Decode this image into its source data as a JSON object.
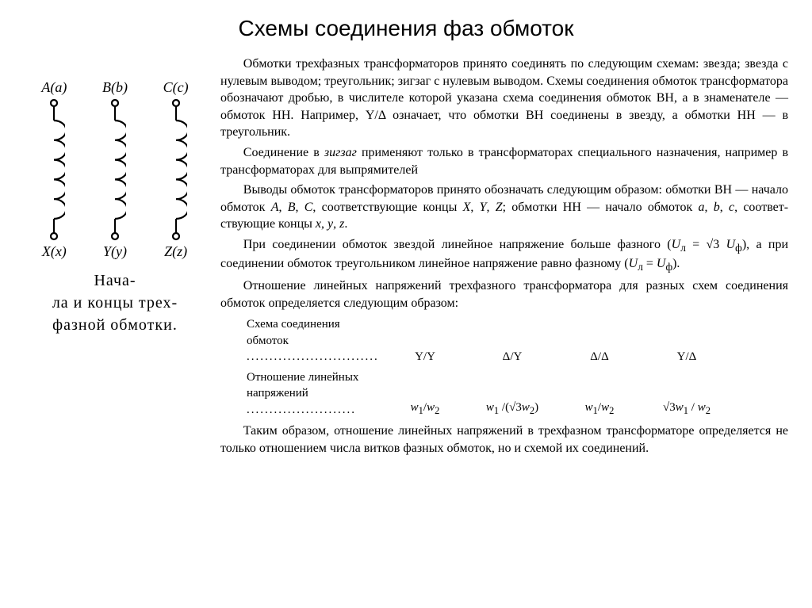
{
  "title": "Схемы соединения фаз обмоток",
  "figure": {
    "coils": [
      {
        "top": "A(a)",
        "bottom": "X(x)"
      },
      {
        "top": "B(b)",
        "bottom": "Y(y)"
      },
      {
        "top": "C(c)",
        "bottom": "Z(z)"
      }
    ],
    "caption_html": "Нача-<br>ла и концы трех-<br>фазной обмотки.",
    "coil_svg": {
      "width": 28,
      "height": 180,
      "stroke": "#000",
      "stroke_width": 2.2,
      "turns": 5
    }
  },
  "paragraphs": [
    "Обмотки трехфазных трансформаторов принято соединять по следующим схемам: звезда; звезда с нулевым выводом; треуголь­ник; зигзаг с нулевым выводом. Схемы соединения обмоток транс­форматора обозначают дробью, в числителе которой указана схема соединения обмоток ВН, а в знаменателе — обмоток НН. Напри­мер, Y/Δ означает, что обмотки ВН соединены в звезду, а обмотки НН — в треугольник.",
    "Соединение в <em class=\"it\">зигзаг</em> применяют только в трансформаторах спе­циального назначения, например в трансформаторах для выпрями­телей",
    "Выводы обмоток трансформаторов принято обозначать следую­щим образом: обмотки ВН — начало обмоток <em class=\"it\">A</em>, <em class=\"it\">B</em>, <em class=\"it\">C</em>, соответствую­щие концы <em class=\"it\">X</em>, <em class=\"it\">Y</em>, <em class=\"it\">Z</em>; обмотки НН — начало обмоток <em class=\"it\">a</em>, <em class=\"it\">b</em>, <em class=\"it\">c</em>, соответ­ствующие концы <em class=\"it\">x</em>, <em class=\"it\">y</em>, <em class=\"it\">z</em>.",
    "При соединении обмоток звездой линейное напряжение больше фазного (<em class=\"it\">U</em><sub>л</sub> = √3 <em class=\"it\">U</em><sub>ф</sub>), а при соединении обмоток треугольником линейное напряжение равно фазному (<em class=\"it\">U</em><sub>л</sub> = <em class=\"it\">U</em><sub>ф</sub>).",
    "Отношение линейных напряжений трехфазного трансформато­ра для разных схем соединения обмоток определяется следующим образом:"
  ],
  "table": {
    "row1": {
      "label": "Схема соединения обмоток",
      "cells": [
        "Y/Y",
        "Δ/Y",
        "Δ/Δ",
        "Y/Δ"
      ]
    },
    "row2": {
      "label": "Отношение линейных напряжений",
      "cells": [
        "<em class=\"it\">w</em><sub>1</sub>/<em class=\"it\">w</em><sub>2</sub>",
        "<em class=\"it\">w</em><sub>1</sub> /(√3<em class=\"it\">w</em><sub>2</sub>)",
        "<em class=\"it\">w</em><sub>1</sub>/<em class=\"it\">w</em><sub>2</sub>",
        "√3<em class=\"it\">w</em><sub>1</sub> / <em class=\"it\">w</em><sub>2</sub>"
      ]
    }
  },
  "closing": "Таким образом, отношение линейных напряжений в трехфазном трансформаторе определяется не только отношением числа витков фазных обмоток, но и схемой их соединений."
}
